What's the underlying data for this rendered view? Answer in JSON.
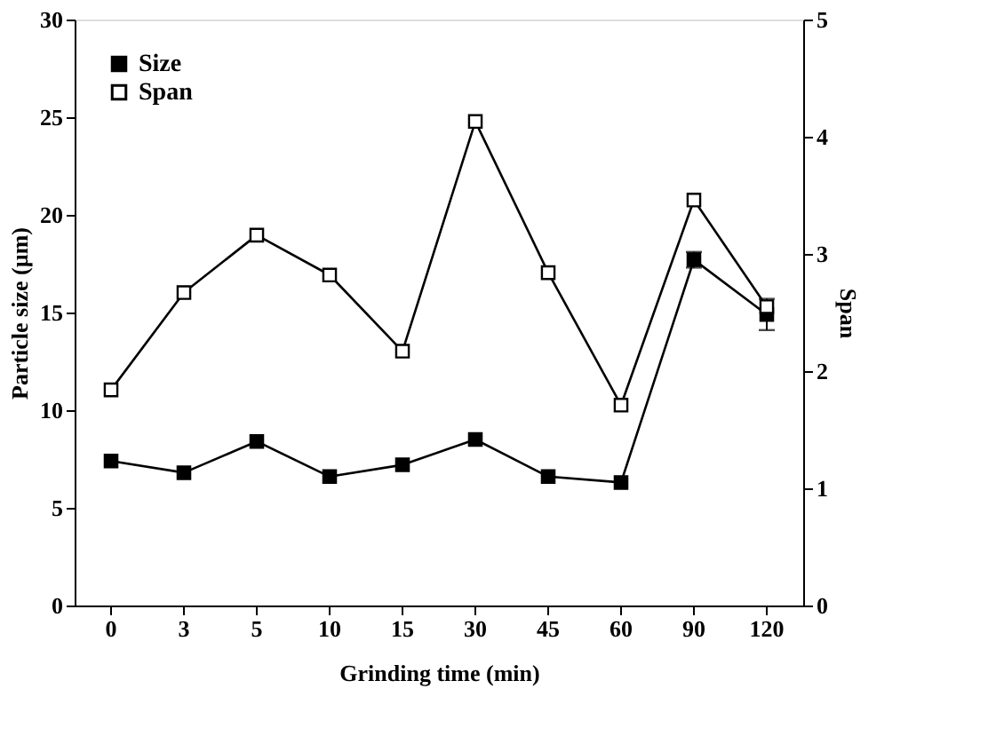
{
  "chart_data": {
    "type": "line",
    "xlabel": "Grinding time (min)",
    "ylabel": "Particle size (µm)",
    "y2label": "Span",
    "categories": [
      "0",
      "3",
      "5",
      "10",
      "15",
      "30",
      "45",
      "60",
      "90",
      "120"
    ],
    "series": [
      {
        "name": "Size",
        "color": "#000000",
        "values": [
          7.4,
          6.8,
          8.4,
          6.6,
          7.2,
          8.5,
          6.6,
          6.3,
          17.7,
          14.9
        ],
        "errors": [
          null,
          null,
          null,
          null,
          null,
          null,
          null,
          null,
          0.4,
          0.8
        ]
      },
      {
        "name": "Span",
        "color": "#000000",
        "axis": "y2",
        "values": [
          1.84,
          2.67,
          3.16,
          2.82,
          2.17,
          4.13,
          2.84,
          1.71,
          3.46,
          2.55
        ]
      }
    ],
    "ylim": [
      0,
      30
    ],
    "yticks": [
      0,
      5,
      10,
      15,
      20,
      25,
      30
    ],
    "y2lim": [
      0,
      5
    ],
    "y2ticks": [
      0,
      1,
      2,
      3,
      4,
      5
    ],
    "marker": "square",
    "line_style": "solid",
    "grid": false,
    "legend": "top left"
  }
}
